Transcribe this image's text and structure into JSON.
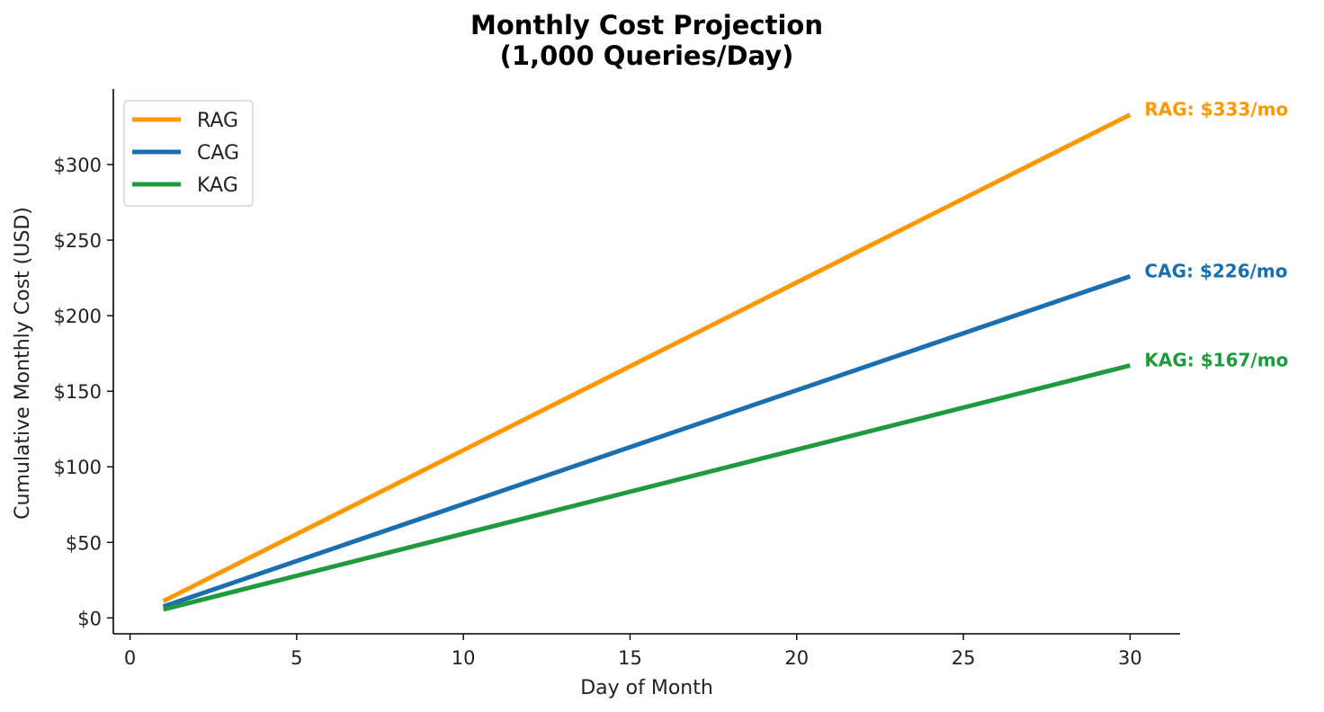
{
  "chart_data": {
    "type": "line",
    "title_lines": [
      "Monthly Cost Projection",
      "(1,000 Queries/Day)"
    ],
    "xlabel": "Day of Month",
    "ylabel": "Cumulative Monthly Cost (USD)",
    "xlim": [
      -0.5,
      31.5
    ],
    "ylim": [
      -10.5,
      350
    ],
    "x_ticks": [
      0,
      5,
      10,
      15,
      20,
      25,
      30
    ],
    "y_ticks": [
      0,
      50,
      100,
      150,
      200,
      250,
      300
    ],
    "y_tick_labels": [
      "$0",
      "$50",
      "$100",
      "$150",
      "$200",
      "$250",
      "$300"
    ],
    "grid": false,
    "legend_position": "top-left",
    "series": [
      {
        "name": "RAG",
        "color": "#ff9800",
        "x": [
          1,
          30
        ],
        "y": [
          11.1,
          333
        ],
        "end_label": "RAG: $333/mo"
      },
      {
        "name": "CAG",
        "color": "#1a6fb0",
        "x": [
          1,
          30
        ],
        "y": [
          7.5,
          226
        ],
        "end_label": "CAG: $226/mo"
      },
      {
        "name": "KAG",
        "color": "#1f9a3e",
        "x": [
          1,
          30
        ],
        "y": [
          5.6,
          167
        ],
        "end_label": "KAG: $167/mo"
      }
    ]
  }
}
